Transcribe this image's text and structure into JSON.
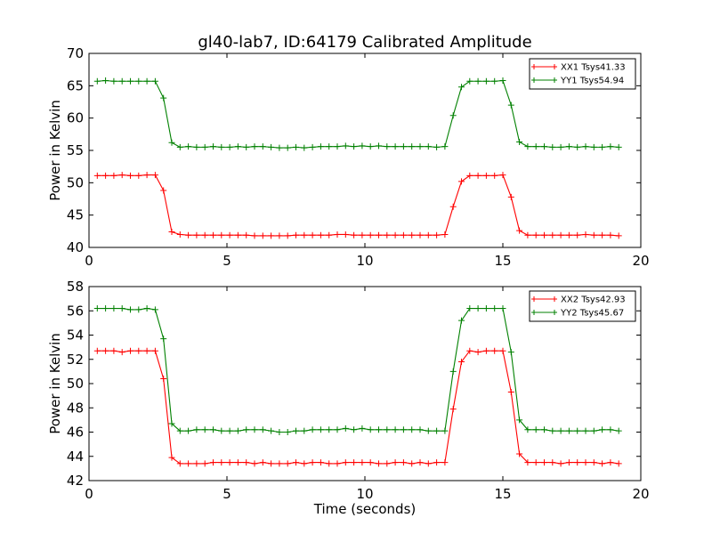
{
  "chart_data": [
    {
      "type": "line",
      "title": "gl40-lab7, ID:64179 Calibrated Amplitude",
      "xlabel": "",
      "ylabel": "Power in Kelvin",
      "xlim": [
        0,
        20
      ],
      "ylim": [
        40,
        70
      ],
      "xticks": [
        0,
        5,
        10,
        15,
        20
      ],
      "yticks": [
        40,
        45,
        50,
        55,
        60,
        65,
        70
      ],
      "grid": false,
      "legend_position": "top-right",
      "x": [
        0.3,
        0.6,
        0.9,
        1.2,
        1.5,
        1.8,
        2.1,
        2.4,
        2.7,
        3.0,
        3.3,
        3.6,
        3.9,
        4.2,
        4.5,
        4.8,
        5.1,
        5.4,
        5.7,
        6.0,
        6.3,
        6.6,
        6.9,
        7.2,
        7.5,
        7.8,
        8.1,
        8.4,
        8.7,
        9.0,
        9.3,
        9.6,
        9.9,
        10.2,
        10.5,
        10.8,
        11.1,
        11.4,
        11.7,
        12.0,
        12.3,
        12.6,
        12.9,
        13.2,
        13.5,
        13.8,
        14.1,
        14.4,
        14.7,
        15.0,
        15.3,
        15.6,
        15.9,
        16.2,
        16.5,
        16.8,
        17.1,
        17.4,
        17.7,
        18.0,
        18.3,
        18.6,
        18.9,
        19.2
      ],
      "series": [
        {
          "name": "XX1 Tsys41.33",
          "color": "#ff0000",
          "values": [
            51.1,
            51.1,
            51.1,
            51.2,
            51.1,
            51.1,
            51.2,
            51.2,
            48.8,
            42.4,
            42.0,
            41.9,
            41.9,
            41.9,
            41.9,
            41.9,
            41.9,
            41.9,
            41.9,
            41.8,
            41.8,
            41.8,
            41.8,
            41.8,
            41.9,
            41.9,
            41.9,
            41.9,
            41.9,
            42.0,
            42.0,
            41.9,
            41.9,
            41.9,
            41.9,
            41.9,
            41.9,
            41.9,
            41.9,
            41.9,
            41.9,
            41.9,
            42.0,
            46.3,
            50.2,
            51.1,
            51.1,
            51.1,
            51.1,
            51.2,
            47.8,
            42.6,
            41.9,
            41.9,
            41.9,
            41.9,
            41.9,
            41.9,
            41.9,
            42.0,
            41.9,
            41.9,
            41.9,
            41.8
          ]
        },
        {
          "name": "YY1 Tsys54.94",
          "color": "#008000",
          "values": [
            65.7,
            65.8,
            65.7,
            65.7,
            65.7,
            65.7,
            65.7,
            65.7,
            63.1,
            56.2,
            55.5,
            55.6,
            55.5,
            55.5,
            55.6,
            55.5,
            55.5,
            55.6,
            55.5,
            55.6,
            55.6,
            55.5,
            55.4,
            55.4,
            55.5,
            55.4,
            55.5,
            55.6,
            55.6,
            55.6,
            55.7,
            55.6,
            55.7,
            55.6,
            55.7,
            55.6,
            55.6,
            55.6,
            55.6,
            55.6,
            55.6,
            55.5,
            55.6,
            60.4,
            64.8,
            65.7,
            65.7,
            65.7,
            65.7,
            65.8,
            62.0,
            56.3,
            55.6,
            55.6,
            55.6,
            55.5,
            55.5,
            55.6,
            55.5,
            55.6,
            55.5,
            55.5,
            55.6,
            55.5
          ]
        }
      ]
    },
    {
      "type": "line",
      "title": "",
      "xlabel": "Time (seconds)",
      "ylabel": "Power in Kelvin",
      "xlim": [
        0,
        20
      ],
      "ylim": [
        42,
        58
      ],
      "xticks": [
        0,
        5,
        10,
        15,
        20
      ],
      "yticks": [
        42,
        44,
        46,
        48,
        50,
        52,
        54,
        56,
        58
      ],
      "grid": false,
      "legend_position": "top-right",
      "x": [
        0.3,
        0.6,
        0.9,
        1.2,
        1.5,
        1.8,
        2.1,
        2.4,
        2.7,
        3.0,
        3.3,
        3.6,
        3.9,
        4.2,
        4.5,
        4.8,
        5.1,
        5.4,
        5.7,
        6.0,
        6.3,
        6.6,
        6.9,
        7.2,
        7.5,
        7.8,
        8.1,
        8.4,
        8.7,
        9.0,
        9.3,
        9.6,
        9.9,
        10.2,
        10.5,
        10.8,
        11.1,
        11.4,
        11.7,
        12.0,
        12.3,
        12.6,
        12.9,
        13.2,
        13.5,
        13.8,
        14.1,
        14.4,
        14.7,
        15.0,
        15.3,
        15.6,
        15.9,
        16.2,
        16.5,
        16.8,
        17.1,
        17.4,
        17.7,
        18.0,
        18.3,
        18.6,
        18.9,
        19.2
      ],
      "series": [
        {
          "name": "XX2 Tsys42.93",
          "color": "#ff0000",
          "values": [
            52.7,
            52.7,
            52.7,
            52.6,
            52.7,
            52.7,
            52.7,
            52.7,
            50.4,
            43.9,
            43.4,
            43.4,
            43.4,
            43.4,
            43.5,
            43.5,
            43.5,
            43.5,
            43.5,
            43.4,
            43.5,
            43.4,
            43.4,
            43.4,
            43.5,
            43.4,
            43.5,
            43.5,
            43.4,
            43.4,
            43.5,
            43.5,
            43.5,
            43.5,
            43.4,
            43.4,
            43.5,
            43.5,
            43.4,
            43.5,
            43.4,
            43.5,
            43.5,
            47.9,
            51.8,
            52.7,
            52.6,
            52.7,
            52.7,
            52.7,
            49.3,
            44.2,
            43.5,
            43.5,
            43.5,
            43.5,
            43.4,
            43.5,
            43.5,
            43.5,
            43.5,
            43.4,
            43.5,
            43.4
          ]
        },
        {
          "name": "YY2 Tsys45.67",
          "color": "#008000",
          "values": [
            56.2,
            56.2,
            56.2,
            56.2,
            56.1,
            56.1,
            56.2,
            56.1,
            53.7,
            46.7,
            46.1,
            46.1,
            46.2,
            46.2,
            46.2,
            46.1,
            46.1,
            46.1,
            46.2,
            46.2,
            46.2,
            46.1,
            46.0,
            46.0,
            46.1,
            46.1,
            46.2,
            46.2,
            46.2,
            46.2,
            46.3,
            46.2,
            46.3,
            46.2,
            46.2,
            46.2,
            46.2,
            46.2,
            46.2,
            46.2,
            46.1,
            46.1,
            46.1,
            51.0,
            55.2,
            56.2,
            56.2,
            56.2,
            56.2,
            56.2,
            52.6,
            47.0,
            46.2,
            46.2,
            46.2,
            46.1,
            46.1,
            46.1,
            46.1,
            46.1,
            46.1,
            46.2,
            46.2,
            46.1
          ]
        }
      ]
    }
  ]
}
